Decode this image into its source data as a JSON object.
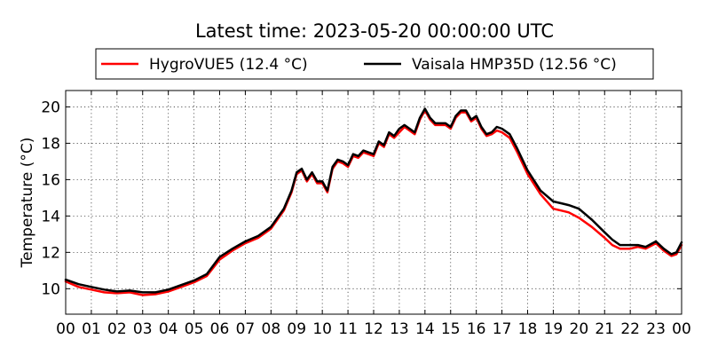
{
  "chart_data": {
    "type": "line",
    "title": "Latest time: 2023-05-20 00:00:00 UTC",
    "xlabel": "",
    "ylabel": "Temperature (°C)",
    "x_ticks": [
      "00",
      "01",
      "02",
      "03",
      "04",
      "05",
      "06",
      "07",
      "08",
      "09",
      "10",
      "11",
      "12",
      "13",
      "14",
      "15",
      "16",
      "17",
      "18",
      "19",
      "20",
      "21",
      "22",
      "23",
      "00"
    ],
    "xlim": [
      0,
      24
    ],
    "ylim": [
      8.6,
      20.9
    ],
    "y_ticks": [
      10,
      12,
      14,
      16,
      18,
      20
    ],
    "grid": true,
    "legend_position": "top",
    "x_unit": "hours (UTC)",
    "series": [
      {
        "name": "HygroVUE5 (12.4 °C)",
        "color": "#ff0000",
        "points": [
          [
            0,
            10.4
          ],
          [
            0.5,
            10.1
          ],
          [
            1,
            9.95
          ],
          [
            1.5,
            9.8
          ],
          [
            2,
            9.75
          ],
          [
            2.5,
            9.8
          ],
          [
            3,
            9.65
          ],
          [
            3.5,
            9.7
          ],
          [
            4,
            9.85
          ],
          [
            4.5,
            10.1
          ],
          [
            5,
            10.35
          ],
          [
            5.5,
            10.7
          ],
          [
            6,
            11.6
          ],
          [
            6.5,
            12.1
          ],
          [
            7,
            12.5
          ],
          [
            7.5,
            12.8
          ],
          [
            8,
            13.3
          ],
          [
            8.5,
            14.3
          ],
          [
            8.8,
            15.3
          ],
          [
            9,
            16.3
          ],
          [
            9.2,
            16.5
          ],
          [
            9.4,
            15.9
          ],
          [
            9.6,
            16.3
          ],
          [
            9.8,
            15.8
          ],
          [
            10,
            15.8
          ],
          [
            10.2,
            15.3
          ],
          [
            10.4,
            16.6
          ],
          [
            10.6,
            17.0
          ],
          [
            10.8,
            16.9
          ],
          [
            11,
            16.7
          ],
          [
            11.2,
            17.3
          ],
          [
            11.4,
            17.2
          ],
          [
            11.6,
            17.5
          ],
          [
            11.8,
            17.4
          ],
          [
            12,
            17.3
          ],
          [
            12.2,
            18.0
          ],
          [
            12.4,
            17.8
          ],
          [
            12.6,
            18.5
          ],
          [
            12.8,
            18.3
          ],
          [
            13,
            18.6
          ],
          [
            13.2,
            18.9
          ],
          [
            13.4,
            18.7
          ],
          [
            13.6,
            18.5
          ],
          [
            13.8,
            19.3
          ],
          [
            14,
            19.8
          ],
          [
            14.2,
            19.3
          ],
          [
            14.4,
            19.0
          ],
          [
            14.6,
            19.0
          ],
          [
            14.8,
            19.0
          ],
          [
            15,
            18.8
          ],
          [
            15.2,
            19.4
          ],
          [
            15.4,
            19.7
          ],
          [
            15.6,
            19.7
          ],
          [
            15.8,
            19.2
          ],
          [
            16,
            19.4
          ],
          [
            16.2,
            18.8
          ],
          [
            16.4,
            18.4
          ],
          [
            16.6,
            18.5
          ],
          [
            16.8,
            18.7
          ],
          [
            17,
            18.6
          ],
          [
            17.3,
            18.3
          ],
          [
            17.6,
            17.5
          ],
          [
            18,
            16.3
          ],
          [
            18.5,
            15.2
          ],
          [
            19,
            14.4
          ],
          [
            19.3,
            14.3
          ],
          [
            19.6,
            14.2
          ],
          [
            20,
            13.9
          ],
          [
            20.5,
            13.4
          ],
          [
            21,
            12.8
          ],
          [
            21.3,
            12.4
          ],
          [
            21.6,
            12.2
          ],
          [
            22,
            12.2
          ],
          [
            22.3,
            12.3
          ],
          [
            22.6,
            12.2
          ],
          [
            23,
            12.5
          ],
          [
            23.3,
            12.1
          ],
          [
            23.6,
            11.8
          ],
          [
            23.8,
            11.9
          ],
          [
            24,
            12.4
          ]
        ]
      },
      {
        "name": "Vaisala HMP35D (12.56 °C)",
        "color": "#000000",
        "points": [
          [
            0,
            10.5
          ],
          [
            0.5,
            10.25
          ],
          [
            1,
            10.1
          ],
          [
            1.5,
            9.95
          ],
          [
            2,
            9.85
          ],
          [
            2.5,
            9.9
          ],
          [
            3,
            9.8
          ],
          [
            3.5,
            9.8
          ],
          [
            4,
            9.95
          ],
          [
            4.5,
            10.2
          ],
          [
            5,
            10.45
          ],
          [
            5.5,
            10.8
          ],
          [
            6,
            11.75
          ],
          [
            6.5,
            12.2
          ],
          [
            7,
            12.6
          ],
          [
            7.5,
            12.9
          ],
          [
            8,
            13.4
          ],
          [
            8.5,
            14.4
          ],
          [
            8.8,
            15.4
          ],
          [
            9,
            16.4
          ],
          [
            9.2,
            16.6
          ],
          [
            9.4,
            16.0
          ],
          [
            9.6,
            16.4
          ],
          [
            9.8,
            15.9
          ],
          [
            10,
            15.9
          ],
          [
            10.2,
            15.4
          ],
          [
            10.4,
            16.7
          ],
          [
            10.6,
            17.1
          ],
          [
            10.8,
            17.0
          ],
          [
            11,
            16.8
          ],
          [
            11.2,
            17.4
          ],
          [
            11.4,
            17.3
          ],
          [
            11.6,
            17.6
          ],
          [
            11.8,
            17.5
          ],
          [
            12,
            17.4
          ],
          [
            12.2,
            18.1
          ],
          [
            12.4,
            17.9
          ],
          [
            12.6,
            18.6
          ],
          [
            12.8,
            18.4
          ],
          [
            13,
            18.8
          ],
          [
            13.2,
            19.0
          ],
          [
            13.4,
            18.8
          ],
          [
            13.6,
            18.6
          ],
          [
            13.8,
            19.4
          ],
          [
            14,
            19.9
          ],
          [
            14.2,
            19.4
          ],
          [
            14.4,
            19.1
          ],
          [
            14.6,
            19.1
          ],
          [
            14.8,
            19.1
          ],
          [
            15,
            18.9
          ],
          [
            15.2,
            19.5
          ],
          [
            15.4,
            19.8
          ],
          [
            15.6,
            19.8
          ],
          [
            15.8,
            19.3
          ],
          [
            16,
            19.5
          ],
          [
            16.2,
            18.9
          ],
          [
            16.4,
            18.5
          ],
          [
            16.6,
            18.6
          ],
          [
            16.8,
            18.9
          ],
          [
            17,
            18.8
          ],
          [
            17.3,
            18.5
          ],
          [
            17.6,
            17.7
          ],
          [
            18,
            16.5
          ],
          [
            18.5,
            15.4
          ],
          [
            19,
            14.8
          ],
          [
            19.3,
            14.7
          ],
          [
            19.6,
            14.6
          ],
          [
            20,
            14.4
          ],
          [
            20.5,
            13.8
          ],
          [
            21,
            13.1
          ],
          [
            21.3,
            12.7
          ],
          [
            21.6,
            12.4
          ],
          [
            22,
            12.4
          ],
          [
            22.3,
            12.4
          ],
          [
            22.6,
            12.3
          ],
          [
            23,
            12.6
          ],
          [
            23.3,
            12.2
          ],
          [
            23.6,
            11.9
          ],
          [
            23.8,
            12.0
          ],
          [
            24,
            12.55
          ]
        ]
      }
    ]
  }
}
